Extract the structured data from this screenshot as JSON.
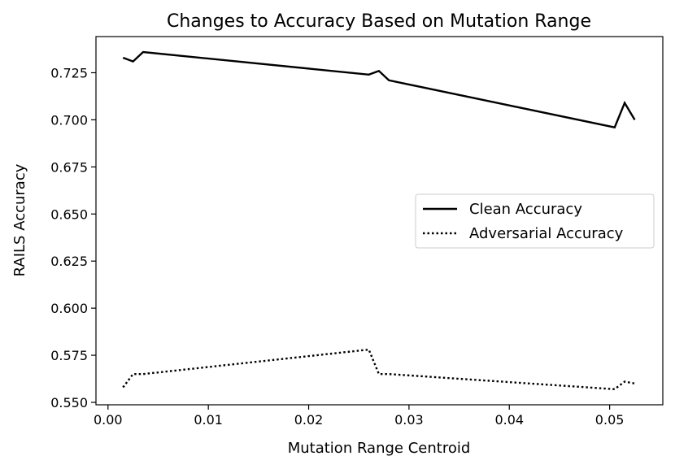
{
  "chart_data": {
    "type": "line",
    "title": "Changes to Accuracy Based on Mutation Range",
    "xlabel": "Mutation Range Centroid",
    "ylabel": "RAILS Accuracy",
    "xlim": [
      -0.0012,
      0.0553
    ],
    "ylim": [
      0.5487,
      0.7442
    ],
    "xticks": [
      0.0,
      0.01,
      0.02,
      0.03,
      0.04,
      0.05
    ],
    "xtick_labels": [
      "0.00",
      "0.01",
      "0.02",
      "0.03",
      "0.04",
      "0.05"
    ],
    "yticks": [
      0.55,
      0.575,
      0.6,
      0.625,
      0.65,
      0.675,
      0.7,
      0.725
    ],
    "ytick_labels": [
      "0.550",
      "0.575",
      "0.600",
      "0.625",
      "0.650",
      "0.675",
      "0.700",
      "0.725"
    ],
    "grid": false,
    "legend_position": "center-right",
    "series": [
      {
        "name": "Clean Accuracy",
        "style": "solid",
        "color": "#000000",
        "x": [
          0.0015,
          0.0025,
          0.0035,
          0.026,
          0.027,
          0.028,
          0.0505,
          0.0515,
          0.0525
        ],
        "y": [
          0.733,
          0.731,
          0.736,
          0.724,
          0.726,
          0.721,
          0.696,
          0.709,
          0.7
        ]
      },
      {
        "name": "Adversarial Accuracy",
        "style": "dotted",
        "color": "#000000",
        "x": [
          0.0015,
          0.0025,
          0.0035,
          0.026,
          0.027,
          0.028,
          0.0505,
          0.0515,
          0.0525
        ],
        "y": [
          0.558,
          0.565,
          0.565,
          0.578,
          0.565,
          0.565,
          0.557,
          0.561,
          0.56
        ]
      }
    ]
  }
}
